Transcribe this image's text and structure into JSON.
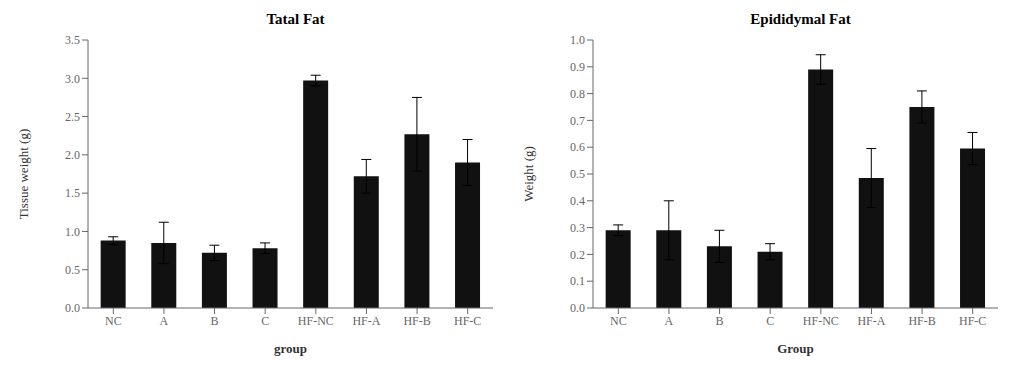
{
  "chart_data": [
    {
      "type": "bar",
      "title": "Tatal Fat",
      "xlabel": "group",
      "ylabel": "Tissue weight (g)",
      "categories": [
        "NC",
        "A",
        "B",
        "C",
        "HF-NC",
        "HF-A",
        "HF-B",
        "HF-C"
      ],
      "values": [
        0.88,
        0.85,
        0.72,
        0.78,
        2.97,
        1.72,
        2.27,
        1.9
      ],
      "errors": [
        0.05,
        0.27,
        0.1,
        0.07,
        0.07,
        0.22,
        0.48,
        0.3
      ],
      "color": "#111111",
      "ylim": [
        0.0,
        3.5
      ],
      "yticks": [
        {
          "value": 0.0,
          "label": "0.0"
        },
        0.5,
        {
          "value": 1.0,
          "label": "1.0"
        },
        1.5,
        {
          "value": 2.0,
          "label": "2.0"
        },
        2.5,
        {
          "value": 3.0,
          "label": "3.0"
        },
        3.5
      ],
      "grid": false
    },
    {
      "type": "bar",
      "title": "Epididymal Fat",
      "xlabel": "Group",
      "ylabel": "Weight (g)",
      "categories": [
        "NC",
        "A",
        "B",
        "C",
        "HF-NC",
        "HF-A",
        "HF-B",
        "HF-C"
      ],
      "values": [
        0.29,
        0.29,
        0.23,
        0.21,
        0.89,
        0.485,
        0.75,
        0.595
      ],
      "errors": [
        0.02,
        0.11,
        0.06,
        0.03,
        0.055,
        0.11,
        0.06,
        0.06
      ],
      "color": "#111111",
      "ylim": [
        0.0,
        1.0
      ],
      "yticks": [
        {
          "value": 0.0,
          "label": "0.0"
        },
        0.1,
        0.2,
        0.3,
        0.4,
        0.5,
        0.6,
        0.7,
        0.8,
        0.9,
        {
          "value": 1.0,
          "label": "1.0"
        }
      ],
      "grid": false
    }
  ]
}
